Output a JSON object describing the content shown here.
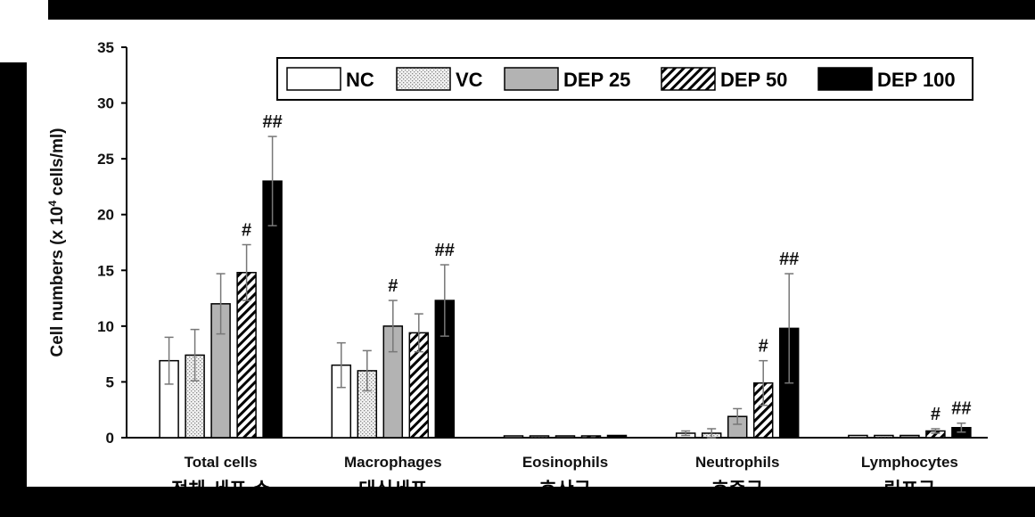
{
  "chart_data": {
    "type": "bar",
    "ylabel_prefix": "Cell numbers (x 10",
    "ylabel_sup": "4",
    "ylabel_suffix": " cells/ml)",
    "ylim": [
      0,
      35
    ],
    "yticks": [
      "0",
      "5",
      "10",
      "15",
      "20",
      "25",
      "30",
      "35"
    ],
    "categories": [
      "Total cells",
      "Macrophages",
      "Eosinophils",
      "Neutrophils",
      "Lymphocytes"
    ],
    "categories_korean": [
      "전체 세포 수",
      "대식세포",
      "호산구",
      "호중구",
      "림프구"
    ],
    "legend_placement": "top-right",
    "series": [
      {
        "name": "NC",
        "pattern": "white",
        "values": [
          6.9,
          6.5,
          0.1,
          0.4,
          0.2
        ],
        "errors": [
          2.1,
          2.0,
          0.05,
          0.2,
          0.05
        ]
      },
      {
        "name": "VC",
        "pattern": "dots",
        "values": [
          7.4,
          6.0,
          0.1,
          0.4,
          0.2
        ],
        "errors": [
          2.3,
          1.8,
          0.05,
          0.4,
          0.05
        ]
      },
      {
        "name": "DEP 25",
        "pattern": "gray",
        "values": [
          12.0,
          10.0,
          0.1,
          1.9,
          0.2
        ],
        "errors": [
          2.7,
          2.3,
          0.05,
          0.7,
          0.05
        ]
      },
      {
        "name": "DEP 50",
        "pattern": "hatch",
        "values": [
          14.8,
          9.4,
          0.1,
          4.9,
          0.6
        ],
        "errors": [
          2.5,
          1.7,
          0.05,
          2.0,
          0.2
        ]
      },
      {
        "name": "DEP 100",
        "pattern": "black",
        "values": [
          23.0,
          12.3,
          0.2,
          9.8,
          0.9
        ],
        "errors": [
          4.0,
          3.2,
          0.05,
          4.9,
          0.4
        ]
      }
    ],
    "significance": [
      {
        "category": 0,
        "series": 3,
        "label": "#"
      },
      {
        "category": 0,
        "series": 4,
        "label": "##"
      },
      {
        "category": 1,
        "series": 2,
        "label": "#"
      },
      {
        "category": 1,
        "series": 4,
        "label": "##"
      },
      {
        "category": 3,
        "series": 3,
        "label": "#"
      },
      {
        "category": 3,
        "series": 4,
        "label": "##"
      },
      {
        "category": 4,
        "series": 3,
        "label": "#"
      },
      {
        "category": 4,
        "series": 4,
        "label": "##"
      }
    ],
    "colors": {
      "gray": "#b3b3b3",
      "black": "#000000",
      "frame": "#000000"
    }
  }
}
